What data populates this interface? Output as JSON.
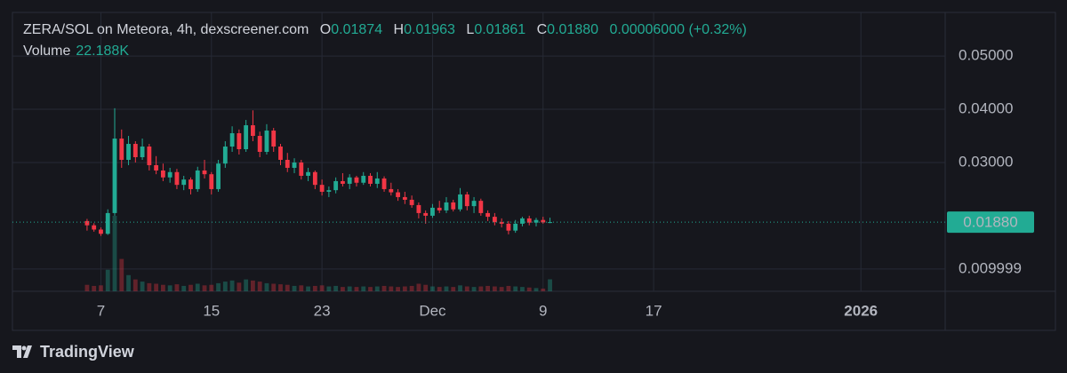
{
  "chart_data": {
    "type": "candlestick",
    "title": "ZERA/SOL on Meteora, 4h, dexscreener.com",
    "header": {
      "o": "O",
      "h": "H",
      "l": "L",
      "c": "C"
    },
    "last_labels": {
      "open": "0.01874",
      "high": "0.01963",
      "low": "0.01861",
      "close": "0.01880"
    },
    "change_label": "0.00006000 (+0.32%)",
    "volume_label": "Volume",
    "volume_value_label": "22.188K",
    "price_label": "0.01880",
    "brand": "TradingView",
    "up_color": "#22ab94",
    "down_color": "#f23645",
    "grid": true,
    "xlim": [
      0.6,
      68.1
    ],
    "ylim": [
      0.0058,
      0.0582
    ],
    "xticks": [
      7,
      15,
      23,
      {
        "value": 31,
        "label": "Dec"
      },
      {
        "value": 39,
        "label": "9"
      },
      {
        "value": 47,
        "label": "17"
      },
      {
        "value": 62,
        "label": "2026"
      }
    ],
    "yticks": [
      {
        "value": 0.05,
        "label": "0.05000"
      },
      {
        "value": 0.04,
        "label": "0.04000"
      },
      {
        "value": 0.03,
        "label": "0.03000"
      },
      0.009999
    ],
    "x": [
      6.0,
      6.5,
      7.0,
      7.5,
      8.0,
      8.5,
      9.0,
      9.5,
      10.0,
      10.5,
      11.0,
      11.5,
      12.0,
      12.5,
      13.0,
      13.5,
      14.0,
      14.5,
      15.0,
      15.5,
      16.0,
      16.5,
      17.0,
      17.5,
      18.0,
      18.5,
      19.0,
      19.5,
      20.0,
      20.5,
      21.0,
      21.5,
      22.0,
      22.5,
      23.0,
      23.5,
      24.0,
      24.5,
      25.0,
      25.5,
      26.0,
      26.5,
      27.0,
      27.5,
      28.0,
      28.5,
      29.0,
      29.5,
      30.0,
      30.5,
      31.0,
      31.5,
      32.0,
      32.5,
      33.0,
      33.5,
      34.0,
      34.5,
      35.0,
      35.5,
      36.0,
      36.5,
      37.0,
      37.5,
      38.0,
      38.5,
      39.0,
      39.5
    ],
    "open": [
      0.019,
      0.0182,
      0.0174,
      0.0166,
      0.0205,
      0.0345,
      0.0305,
      0.0335,
      0.031,
      0.033,
      0.0295,
      0.0285,
      0.0272,
      0.0282,
      0.0258,
      0.0268,
      0.025,
      0.0285,
      0.0278,
      0.025,
      0.0298,
      0.033,
      0.0355,
      0.0325,
      0.037,
      0.035,
      0.032,
      0.036,
      0.033,
      0.0305,
      0.029,
      0.03,
      0.0275,
      0.0282,
      0.0258,
      0.0245,
      0.0248,
      0.0265,
      0.026,
      0.0272,
      0.0262,
      0.0275,
      0.026,
      0.027,
      0.025,
      0.0244,
      0.0235,
      0.023,
      0.022,
      0.0205,
      0.02,
      0.0215,
      0.021,
      0.0225,
      0.0212,
      0.024,
      0.0218,
      0.0228,
      0.0205,
      0.0198,
      0.0188,
      0.0185,
      0.0172,
      0.0185,
      0.0195,
      0.0187,
      0.0192,
      0.01874
    ],
    "high": [
      0.0194,
      0.0186,
      0.0178,
      0.0212,
      0.0402,
      0.0362,
      0.035,
      0.034,
      0.0345,
      0.0335,
      0.0312,
      0.0298,
      0.029,
      0.0288,
      0.0275,
      0.0272,
      0.0292,
      0.0305,
      0.0282,
      0.0305,
      0.034,
      0.0368,
      0.0362,
      0.038,
      0.0398,
      0.0358,
      0.0372,
      0.0365,
      0.0335,
      0.0318,
      0.0308,
      0.0305,
      0.029,
      0.0285,
      0.0268,
      0.0255,
      0.0272,
      0.028,
      0.0278,
      0.0275,
      0.0282,
      0.028,
      0.0282,
      0.0274,
      0.0262,
      0.025,
      0.0245,
      0.0238,
      0.0225,
      0.021,
      0.0222,
      0.0228,
      0.0235,
      0.023,
      0.0252,
      0.0245,
      0.0235,
      0.0232,
      0.021,
      0.0205,
      0.0195,
      0.019,
      0.0192,
      0.0198,
      0.02,
      0.0196,
      0.0198,
      0.01963
    ],
    "low": [
      0.0172,
      0.017,
      0.0162,
      0.0164,
      0.02,
      0.029,
      0.0295,
      0.03,
      0.0305,
      0.0285,
      0.0278,
      0.0265,
      0.0262,
      0.025,
      0.0248,
      0.024,
      0.0245,
      0.027,
      0.024,
      0.0245,
      0.029,
      0.032,
      0.0315,
      0.032,
      0.034,
      0.031,
      0.0315,
      0.032,
      0.0295,
      0.0282,
      0.028,
      0.0268,
      0.0265,
      0.025,
      0.0238,
      0.0235,
      0.0242,
      0.0255,
      0.025,
      0.0255,
      0.0258,
      0.0255,
      0.0252,
      0.0245,
      0.0238,
      0.0228,
      0.0222,
      0.0215,
      0.0195,
      0.0185,
      0.0196,
      0.0205,
      0.0205,
      0.0208,
      0.0208,
      0.021,
      0.0205,
      0.02,
      0.019,
      0.0182,
      0.0178,
      0.0165,
      0.0168,
      0.018,
      0.0182,
      0.018,
      0.0185,
      0.01861
    ],
    "close": [
      0.0182,
      0.0174,
      0.0166,
      0.0205,
      0.0345,
      0.0305,
      0.0335,
      0.031,
      0.033,
      0.0295,
      0.0285,
      0.0272,
      0.0282,
      0.0258,
      0.0268,
      0.025,
      0.0285,
      0.0278,
      0.025,
      0.0298,
      0.033,
      0.0355,
      0.0325,
      0.037,
      0.035,
      0.032,
      0.036,
      0.033,
      0.0305,
      0.029,
      0.03,
      0.0275,
      0.0282,
      0.0258,
      0.0245,
      0.0248,
      0.0265,
      0.026,
      0.0272,
      0.0262,
      0.0275,
      0.026,
      0.027,
      0.025,
      0.0244,
      0.0235,
      0.023,
      0.022,
      0.0205,
      0.02,
      0.0215,
      0.021,
      0.0225,
      0.0212,
      0.024,
      0.0218,
      0.0228,
      0.0205,
      0.0198,
      0.0188,
      0.0185,
      0.0172,
      0.0185,
      0.0195,
      0.0187,
      0.0192,
      0.01874,
      0.0188
    ],
    "volume": [
      12,
      10,
      11,
      40,
      140,
      60,
      30,
      22,
      18,
      15,
      14,
      12,
      11,
      13,
      10,
      12,
      14,
      11,
      12,
      15,
      18,
      20,
      16,
      22,
      20,
      18,
      15,
      14,
      13,
      12,
      10,
      11,
      9,
      10,
      11,
      9,
      10,
      8,
      9,
      8,
      9,
      8,
      9,
      10,
      9,
      8,
      9,
      10,
      14,
      12,
      9,
      8,
      9,
      8,
      11,
      9,
      8,
      9,
      10,
      9,
      8,
      10,
      9,
      8,
      7,
      6,
      5,
      22.188
    ]
  }
}
